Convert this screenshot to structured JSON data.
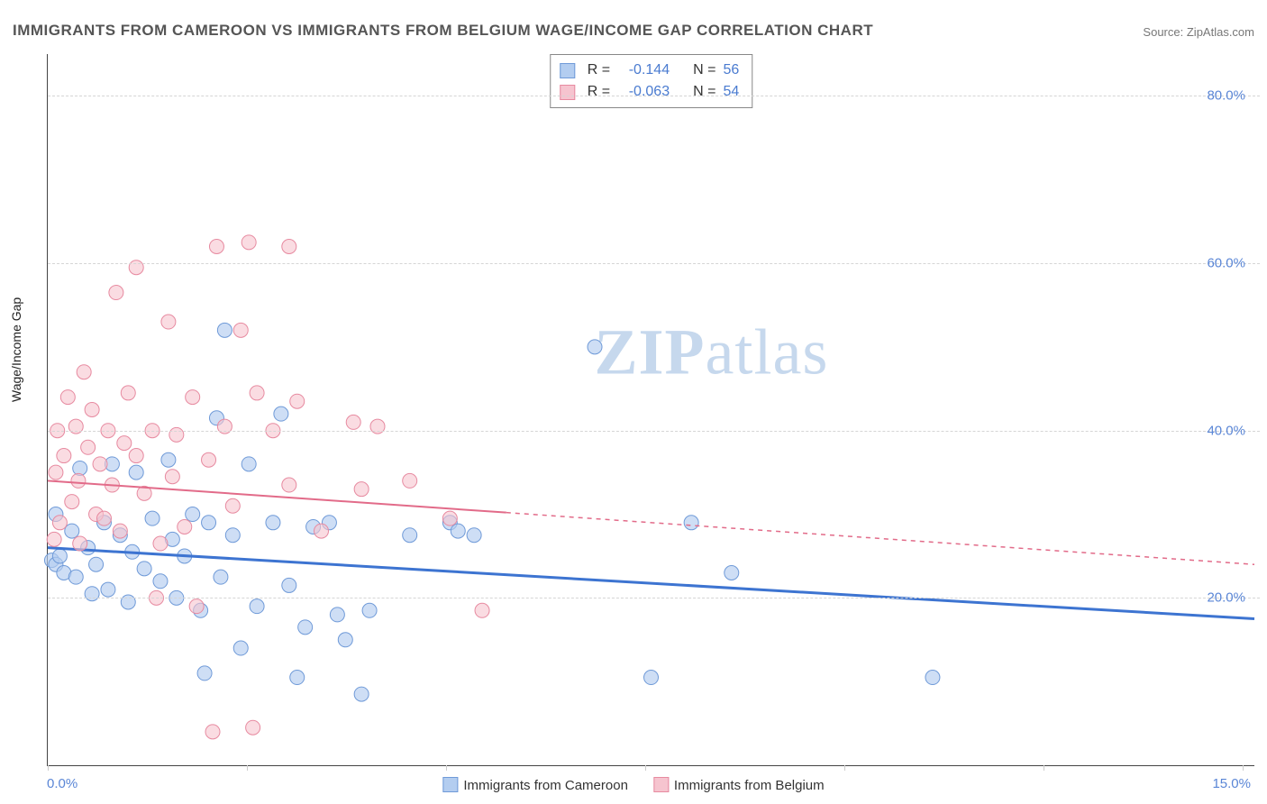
{
  "title": "IMMIGRANTS FROM CAMEROON VS IMMIGRANTS FROM BELGIUM WAGE/INCOME GAP CORRELATION CHART",
  "source_label": "Source:",
  "source_value": "ZipAtlas.com",
  "watermark_a": "ZIP",
  "watermark_b": "atlas",
  "chart": {
    "type": "scatter",
    "y_label": "Wage/Income Gap",
    "x_min": 0.0,
    "x_max": 15.0,
    "y_min": 0.0,
    "y_max": 85.0,
    "x_tick_label_left": "0.0%",
    "x_tick_label_right": "15.0%",
    "y_ticks": [
      20.0,
      40.0,
      60.0,
      80.0
    ],
    "y_tick_labels": [
      "20.0%",
      "40.0%",
      "60.0%",
      "80.0%"
    ],
    "x_tick_positions_pct": [
      0,
      16.5,
      33,
      49.5,
      66,
      82.5,
      99
    ],
    "grid_color": "#d5d5d5",
    "axis_tick_color": "#5a86d6",
    "background_color": "#ffffff",
    "point_radius": 8,
    "point_stroke_width": 1,
    "series": [
      {
        "name": "Immigrants from Cameroon",
        "fill": "#b3cdf0",
        "stroke": "#6f9ad8",
        "fill_opacity": 0.65,
        "stats": {
          "R": "-0.144",
          "N": "56"
        },
        "trend": {
          "x1": 0.0,
          "y1": 26.0,
          "x2": 15.0,
          "y2": 17.5,
          "color": "#3d74d1",
          "width": 3,
          "solid_until_x": 15.0
        },
        "points": [
          [
            0.05,
            24.5
          ],
          [
            0.1,
            24.0
          ],
          [
            0.15,
            25.0
          ],
          [
            0.1,
            30.0
          ],
          [
            0.2,
            23.0
          ],
          [
            0.3,
            28.0
          ],
          [
            0.35,
            22.5
          ],
          [
            0.4,
            35.5
          ],
          [
            0.5,
            26.0
          ],
          [
            0.55,
            20.5
          ],
          [
            0.6,
            24.0
          ],
          [
            0.7,
            29.0
          ],
          [
            0.75,
            21.0
          ],
          [
            0.8,
            36.0
          ],
          [
            0.9,
            27.5
          ],
          [
            1.0,
            19.5
          ],
          [
            1.05,
            25.5
          ],
          [
            1.1,
            35.0
          ],
          [
            1.2,
            23.5
          ],
          [
            1.3,
            29.5
          ],
          [
            1.4,
            22.0
          ],
          [
            1.5,
            36.5
          ],
          [
            1.55,
            27.0
          ],
          [
            1.6,
            20.0
          ],
          [
            1.7,
            25.0
          ],
          [
            1.8,
            30.0
          ],
          [
            1.9,
            18.5
          ],
          [
            2.0,
            29.0
          ],
          [
            2.1,
            41.5
          ],
          [
            2.15,
            22.5
          ],
          [
            2.2,
            52.0
          ],
          [
            2.3,
            27.5
          ],
          [
            2.4,
            14.0
          ],
          [
            2.5,
            36.0
          ],
          [
            2.6,
            19.0
          ],
          [
            2.8,
            29.0
          ],
          [
            2.9,
            42.0
          ],
          [
            3.0,
            21.5
          ],
          [
            3.1,
            10.5
          ],
          [
            3.2,
            16.5
          ],
          [
            3.3,
            28.5
          ],
          [
            3.5,
            29.0
          ],
          [
            3.6,
            18.0
          ],
          [
            3.7,
            15.0
          ],
          [
            3.9,
            8.5
          ],
          [
            4.0,
            18.5
          ],
          [
            4.5,
            27.5
          ],
          [
            5.0,
            29.0
          ],
          [
            5.1,
            28.0
          ],
          [
            5.3,
            27.5
          ],
          [
            6.8,
            50.0
          ],
          [
            8.0,
            29.0
          ],
          [
            8.5,
            23.0
          ],
          [
            7.5,
            10.5
          ],
          [
            11.0,
            10.5
          ],
          [
            1.95,
            11.0
          ]
        ]
      },
      {
        "name": "Immigrants from Belgium",
        "fill": "#f6c4cf",
        "stroke": "#e78aa0",
        "fill_opacity": 0.6,
        "stats": {
          "R": "-0.063",
          "N": "54"
        },
        "trend": {
          "x1": 0.0,
          "y1": 34.0,
          "x2": 15.0,
          "y2": 24.0,
          "color": "#e26b89",
          "width": 2,
          "solid_until_x": 5.7
        },
        "points": [
          [
            0.08,
            27.0
          ],
          [
            0.1,
            35.0
          ],
          [
            0.12,
            40.0
          ],
          [
            0.15,
            29.0
          ],
          [
            0.2,
            37.0
          ],
          [
            0.25,
            44.0
          ],
          [
            0.3,
            31.5
          ],
          [
            0.35,
            40.5
          ],
          [
            0.38,
            34.0
          ],
          [
            0.4,
            26.5
          ],
          [
            0.45,
            47.0
          ],
          [
            0.5,
            38.0
          ],
          [
            0.55,
            42.5
          ],
          [
            0.6,
            30.0
          ],
          [
            0.65,
            36.0
          ],
          [
            0.7,
            29.5
          ],
          [
            0.75,
            40.0
          ],
          [
            0.8,
            33.5
          ],
          [
            0.85,
            56.5
          ],
          [
            0.9,
            28.0
          ],
          [
            0.95,
            38.5
          ],
          [
            1.0,
            44.5
          ],
          [
            1.1,
            59.5
          ],
          [
            1.1,
            37.0
          ],
          [
            1.2,
            32.5
          ],
          [
            1.3,
            40.0
          ],
          [
            1.35,
            20.0
          ],
          [
            1.4,
            26.5
          ],
          [
            1.5,
            53.0
          ],
          [
            1.55,
            34.5
          ],
          [
            1.6,
            39.5
          ],
          [
            1.7,
            28.5
          ],
          [
            1.8,
            44.0
          ],
          [
            1.85,
            19.0
          ],
          [
            2.0,
            36.5
          ],
          [
            2.1,
            62.0
          ],
          [
            2.2,
            40.5
          ],
          [
            2.3,
            31.0
          ],
          [
            2.4,
            52.0
          ],
          [
            2.5,
            62.5
          ],
          [
            2.6,
            44.5
          ],
          [
            2.8,
            40.0
          ],
          [
            3.0,
            62.0
          ],
          [
            3.0,
            33.5
          ],
          [
            3.1,
            43.5
          ],
          [
            3.4,
            28.0
          ],
          [
            3.8,
            41.0
          ],
          [
            3.9,
            33.0
          ],
          [
            4.1,
            40.5
          ],
          [
            4.5,
            34.0
          ],
          [
            5.0,
            29.5
          ],
          [
            5.4,
            18.5
          ],
          [
            2.05,
            4.0
          ],
          [
            2.55,
            4.5
          ]
        ]
      }
    ],
    "stats_labels": {
      "R": "R =",
      "N": "N ="
    },
    "bottom_legend_swatch_size": 17
  }
}
